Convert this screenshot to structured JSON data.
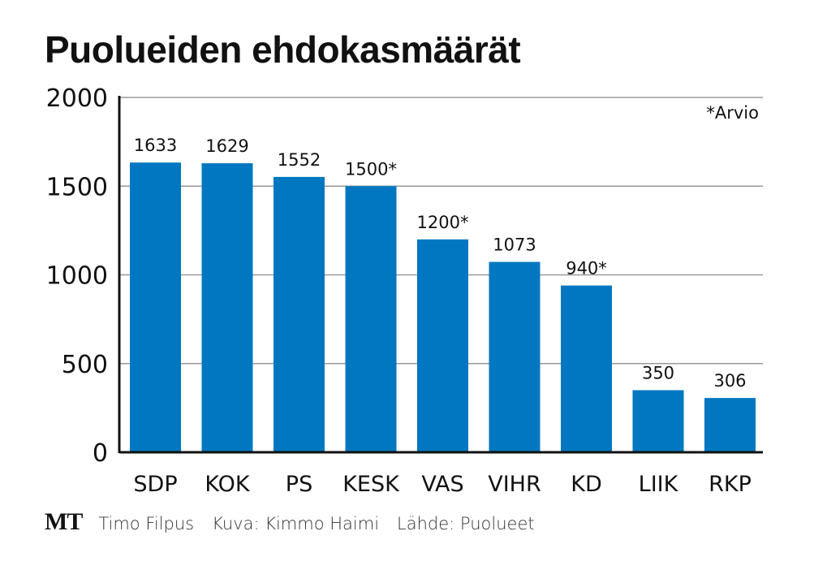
{
  "chart_data": {
    "type": "bar",
    "title": "Puolueiden ehdokasmäärät",
    "categories": [
      "SDP",
      "KOK",
      "PS",
      "KESK",
      "VAS",
      "VIHR",
      "KD",
      "LIIK",
      "RKP"
    ],
    "values": [
      1633,
      1629,
      1552,
      1500,
      1200,
      1073,
      940,
      350,
      306
    ],
    "value_labels": [
      "1633",
      "1629",
      "1552",
      "1500*",
      "1200*",
      "1073",
      "940*",
      "350",
      "306"
    ],
    "annotation": "*Arvio",
    "yticks": [
      0,
      500,
      1000,
      1500,
      2000
    ],
    "ylim": [
      0,
      2000
    ],
    "grid": true,
    "bar_color": "#0077c0",
    "xlabel": "",
    "ylabel": ""
  },
  "footer": {
    "logo": "MT",
    "items": [
      "Timo Filpus",
      "Kuva: Kimmo Haimi",
      "Lähde: Puolueet"
    ]
  }
}
